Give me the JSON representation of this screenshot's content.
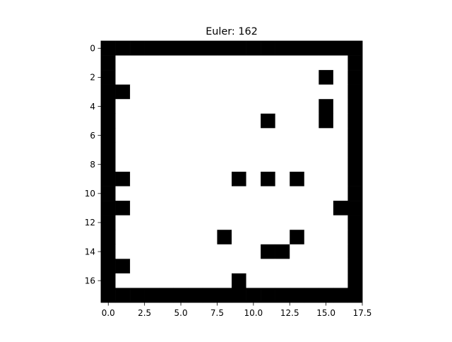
{
  "chart_data": {
    "type": "heatmap",
    "title": "Euler: 162",
    "xlabel": "",
    "ylabel": "",
    "colormap": [
      "#ffffff",
      "#000000"
    ],
    "grid": false,
    "x_ticks": [
      "0.0",
      "2.5",
      "5.0",
      "7.5",
      "10.0",
      "12.5",
      "15.0",
      "17.5"
    ],
    "x_tick_values": [
      0,
      2.5,
      5,
      7.5,
      10,
      12.5,
      15,
      17.5
    ],
    "y_ticks": [
      "0",
      "2",
      "4",
      "6",
      "8",
      "10",
      "12",
      "14",
      "16"
    ],
    "y_tick_values": [
      0,
      2,
      4,
      6,
      8,
      10,
      12,
      14,
      16
    ],
    "xlim": [
      -0.5,
      17.5
    ],
    "ylim": [
      17.5,
      -0.5
    ],
    "matrix": [
      [
        1,
        1,
        1,
        1,
        1,
        1,
        1,
        1,
        1,
        1,
        1,
        1,
        1,
        1,
        1,
        1,
        1,
        1
      ],
      [
        1,
        0,
        0,
        0,
        0,
        0,
        0,
        0,
        0,
        0,
        0,
        0,
        0,
        0,
        0,
        0,
        0,
        1
      ],
      [
        1,
        0,
        0,
        0,
        0,
        0,
        0,
        0,
        0,
        0,
        0,
        0,
        0,
        0,
        0,
        1,
        0,
        1
      ],
      [
        1,
        1,
        0,
        0,
        0,
        0,
        0,
        0,
        0,
        0,
        0,
        0,
        0,
        0,
        0,
        0,
        0,
        1
      ],
      [
        1,
        0,
        0,
        0,
        0,
        0,
        0,
        0,
        0,
        0,
        0,
        0,
        0,
        0,
        0,
        1,
        0,
        1
      ],
      [
        1,
        0,
        0,
        0,
        0,
        0,
        0,
        0,
        0,
        0,
        0,
        1,
        0,
        0,
        0,
        1,
        0,
        1
      ],
      [
        1,
        0,
        0,
        0,
        0,
        0,
        0,
        0,
        0,
        0,
        0,
        0,
        0,
        0,
        0,
        0,
        0,
        1
      ],
      [
        1,
        0,
        0,
        0,
        0,
        0,
        0,
        0,
        0,
        0,
        0,
        0,
        0,
        0,
        0,
        0,
        0,
        1
      ],
      [
        1,
        0,
        0,
        0,
        0,
        0,
        0,
        0,
        0,
        0,
        0,
        0,
        0,
        0,
        0,
        0,
        0,
        1
      ],
      [
        1,
        1,
        0,
        0,
        0,
        0,
        0,
        0,
        0,
        1,
        0,
        1,
        0,
        1,
        0,
        0,
        0,
        1
      ],
      [
        1,
        0,
        0,
        0,
        0,
        0,
        0,
        0,
        0,
        0,
        0,
        0,
        0,
        0,
        0,
        0,
        0,
        1
      ],
      [
        1,
        1,
        0,
        0,
        0,
        0,
        0,
        0,
        0,
        0,
        0,
        0,
        0,
        0,
        0,
        0,
        1,
        1
      ],
      [
        1,
        0,
        0,
        0,
        0,
        0,
        0,
        0,
        0,
        0,
        0,
        0,
        0,
        0,
        0,
        0,
        0,
        1
      ],
      [
        1,
        0,
        0,
        0,
        0,
        0,
        0,
        0,
        1,
        0,
        0,
        0,
        0,
        1,
        0,
        0,
        0,
        1
      ],
      [
        1,
        0,
        0,
        0,
        0,
        0,
        0,
        0,
        0,
        0,
        0,
        1,
        1,
        0,
        0,
        0,
        0,
        1
      ],
      [
        1,
        1,
        0,
        0,
        0,
        0,
        0,
        0,
        0,
        0,
        0,
        0,
        0,
        0,
        0,
        0,
        0,
        1
      ],
      [
        1,
        0,
        0,
        0,
        0,
        0,
        0,
        0,
        0,
        1,
        0,
        0,
        0,
        0,
        0,
        0,
        0,
        1
      ],
      [
        1,
        1,
        1,
        1,
        1,
        1,
        1,
        1,
        1,
        1,
        1,
        1,
        1,
        1,
        1,
        1,
        1,
        1
      ]
    ]
  }
}
